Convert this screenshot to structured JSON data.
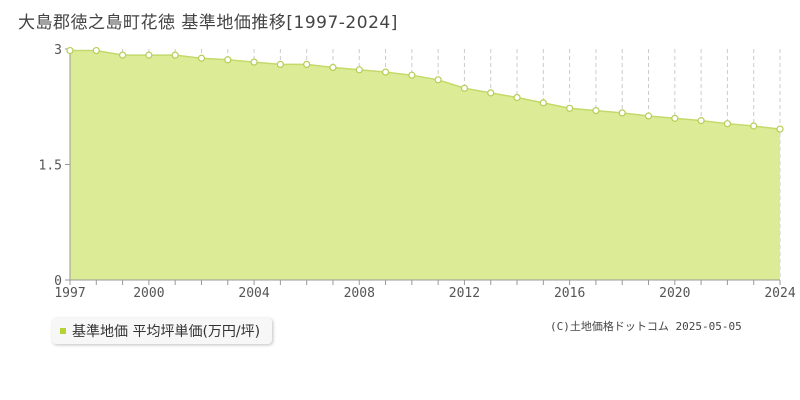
{
  "title": "大島郡徳之島町花徳 基準地価推移[1997-2024]",
  "legend": {
    "label": "基準地価 平均坪単価(万円/坪)"
  },
  "copyright": "(C)土地価格ドットコム 2025-05-05",
  "colors": {
    "fill": "#dcec96",
    "line": "#c4d96a",
    "marker_fill": "#ffffff",
    "marker_stroke": "#b5cd55",
    "grid": "#cccccc",
    "axis": "#999999",
    "legend_swatch": "#b5d334"
  },
  "chart_data": {
    "type": "area",
    "x": [
      1997,
      1998,
      1999,
      2000,
      2001,
      2002,
      2003,
      2004,
      2005,
      2006,
      2007,
      2008,
      2009,
      2010,
      2011,
      2012,
      2013,
      2014,
      2015,
      2016,
      2017,
      2018,
      2019,
      2020,
      2021,
      2022,
      2023,
      2024
    ],
    "series": [
      {
        "name": "基準地価 平均坪単価(万円/坪)",
        "values": [
          2.98,
          2.98,
          2.92,
          2.92,
          2.92,
          2.88,
          2.86,
          2.83,
          2.8,
          2.8,
          2.76,
          2.73,
          2.7,
          2.66,
          2.6,
          2.49,
          2.43,
          2.37,
          2.3,
          2.23,
          2.2,
          2.17,
          2.13,
          2.1,
          2.07,
          2.03,
          2.0,
          1.96
        ]
      }
    ],
    "x_ticks": [
      "1997",
      "2000",
      "2004",
      "2008",
      "2012",
      "2016",
      "2020",
      "2024"
    ],
    "y_ticks": [
      "0",
      "1.5",
      "3"
    ],
    "ylim": [
      0,
      3
    ],
    "xlim": [
      1997,
      2024
    ],
    "xlabel": "",
    "ylabel": "",
    "grid": true
  }
}
